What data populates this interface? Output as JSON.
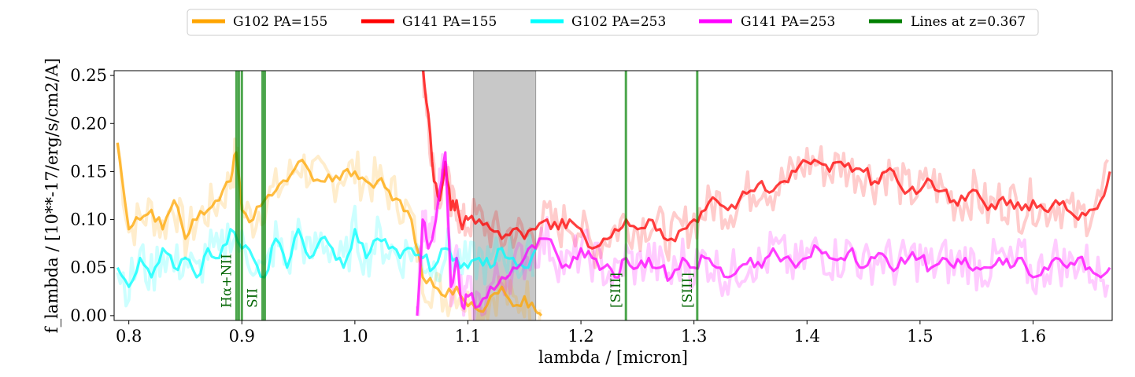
{
  "chart_data": {
    "type": "line",
    "title": "",
    "xlabel": "lambda / [micron]",
    "ylabel": "f_lambda / [10**-17/erg/s/cm2/A]",
    "xlim": [
      0.787,
      1.67
    ],
    "ylim": [
      -0.005,
      0.255
    ],
    "x_ticks": [
      "0.8",
      "0.9",
      "1.0",
      "1.1",
      "1.2",
      "1.3",
      "1.4",
      "1.5",
      "1.6"
    ],
    "y_ticks": [
      "0.00",
      "0.05",
      "0.10",
      "0.15",
      "0.20",
      "0.25"
    ],
    "grid": false,
    "legend_position": "top-center",
    "legend": [
      {
        "label": "G102 PA=155",
        "color": "#ffa500"
      },
      {
        "label": "G141 PA=155",
        "color": "#ff0000"
      },
      {
        "label": "G102 PA=253",
        "color": "#00ffff"
      },
      {
        "label": "G141 PA=253",
        "color": "#ff00ff"
      },
      {
        "label": "Lines at z=0.367",
        "color": "#008000"
      }
    ],
    "shaded_region": {
      "x": [
        1.105,
        1.16
      ],
      "color": "#c8c8c8"
    },
    "series": [
      {
        "name": "G102 PA=155",
        "color": "#ffa500",
        "x": [
          0.79,
          0.8,
          0.81,
          0.82,
          0.83,
          0.84,
          0.85,
          0.86,
          0.87,
          0.88,
          0.89,
          0.895,
          0.9,
          0.91,
          0.92,
          0.93,
          0.94,
          0.95,
          0.96,
          0.97,
          0.98,
          0.99,
          1.0,
          1.01,
          1.02,
          1.03,
          1.04,
          1.05,
          1.06,
          1.07,
          1.08,
          1.09,
          1.1,
          1.11,
          1.12,
          1.13,
          1.14,
          1.15,
          1.16,
          1.165
        ],
        "y": [
          0.18,
          0.09,
          0.1,
          0.11,
          0.09,
          0.12,
          0.08,
          0.1,
          0.11,
          0.12,
          0.14,
          0.17,
          0.11,
          0.1,
          0.12,
          0.13,
          0.14,
          0.16,
          0.15,
          0.14,
          0.14,
          0.15,
          0.15,
          0.14,
          0.14,
          0.13,
          0.12,
          0.1,
          0.04,
          0.03,
          0.02,
          0.03,
          0.01,
          0.005,
          0.02,
          0.03,
          0.01,
          0.02,
          0.005,
          0.0
        ]
      },
      {
        "name": "G141 PA=155",
        "color": "#ff0000",
        "x": [
          1.06,
          1.065,
          1.07,
          1.075,
          1.08,
          1.085,
          1.09,
          1.095,
          1.1,
          1.11,
          1.12,
          1.13,
          1.14,
          1.15,
          1.16,
          1.17,
          1.18,
          1.19,
          1.2,
          1.21,
          1.22,
          1.23,
          1.24,
          1.25,
          1.26,
          1.27,
          1.28,
          1.29,
          1.3,
          1.31,
          1.32,
          1.33,
          1.34,
          1.35,
          1.36,
          1.37,
          1.38,
          1.39,
          1.4,
          1.41,
          1.42,
          1.43,
          1.44,
          1.45,
          1.46,
          1.47,
          1.48,
          1.49,
          1.5,
          1.51,
          1.52,
          1.53,
          1.54,
          1.55,
          1.56,
          1.57,
          1.58,
          1.59,
          1.6,
          1.61,
          1.62,
          1.63,
          1.64,
          1.65,
          1.66,
          1.668
        ],
        "y": [
          0.26,
          0.21,
          0.14,
          0.12,
          0.16,
          0.11,
          0.12,
          0.09,
          0.1,
          0.1,
          0.09,
          0.08,
          0.09,
          0.08,
          0.09,
          0.1,
          0.09,
          0.1,
          0.09,
          0.07,
          0.08,
          0.09,
          0.1,
          0.09,
          0.1,
          0.09,
          0.08,
          0.09,
          0.1,
          0.11,
          0.12,
          0.11,
          0.12,
          0.13,
          0.14,
          0.13,
          0.14,
          0.15,
          0.16,
          0.16,
          0.15,
          0.16,
          0.15,
          0.15,
          0.14,
          0.15,
          0.14,
          0.13,
          0.13,
          0.14,
          0.13,
          0.12,
          0.12,
          0.13,
          0.11,
          0.12,
          0.12,
          0.11,
          0.12,
          0.11,
          0.12,
          0.11,
          0.1,
          0.11,
          0.12,
          0.15
        ]
      },
      {
        "name": "G102 PA=253",
        "color": "#00ffff",
        "x": [
          0.79,
          0.8,
          0.81,
          0.82,
          0.83,
          0.84,
          0.85,
          0.86,
          0.87,
          0.88,
          0.89,
          0.9,
          0.91,
          0.92,
          0.93,
          0.94,
          0.95,
          0.96,
          0.97,
          0.98,
          0.99,
          1.0,
          1.01,
          1.02,
          1.03,
          1.04,
          1.05,
          1.06,
          1.07,
          1.08,
          1.09,
          1.1,
          1.11,
          1.12,
          1.13,
          1.14,
          1.15,
          1.16
        ],
        "y": [
          0.05,
          0.03,
          0.06,
          0.04,
          0.07,
          0.05,
          0.06,
          0.04,
          0.07,
          0.06,
          0.09,
          0.07,
          0.06,
          0.04,
          0.08,
          0.05,
          0.09,
          0.06,
          0.08,
          0.07,
          0.05,
          0.09,
          0.06,
          0.08,
          0.07,
          0.06,
          0.07,
          0.06,
          0.05,
          0.07,
          0.06,
          0.05,
          0.06,
          0.05,
          0.07,
          0.06,
          0.05,
          0.07
        ]
      },
      {
        "name": "G141 PA=253",
        "color": "#ff00ff",
        "x": [
          1.055,
          1.06,
          1.065,
          1.07,
          1.075,
          1.08,
          1.085,
          1.09,
          1.095,
          1.1,
          1.11,
          1.12,
          1.13,
          1.14,
          1.15,
          1.16,
          1.17,
          1.18,
          1.19,
          1.2,
          1.21,
          1.22,
          1.23,
          1.24,
          1.25,
          1.26,
          1.27,
          1.28,
          1.29,
          1.3,
          1.31,
          1.32,
          1.33,
          1.34,
          1.35,
          1.36,
          1.37,
          1.38,
          1.39,
          1.4,
          1.41,
          1.42,
          1.43,
          1.44,
          1.45,
          1.46,
          1.47,
          1.48,
          1.49,
          1.5,
          1.51,
          1.52,
          1.53,
          1.54,
          1.55,
          1.56,
          1.57,
          1.58,
          1.59,
          1.6,
          1.61,
          1.62,
          1.63,
          1.64,
          1.65,
          1.66,
          1.668
        ],
        "y": [
          0.0,
          0.1,
          0.07,
          0.09,
          0.13,
          0.17,
          0.03,
          0.06,
          0.01,
          0.02,
          0.01,
          0.03,
          0.04,
          0.05,
          0.06,
          0.07,
          0.08,
          0.06,
          0.05,
          0.07,
          0.06,
          0.05,
          0.04,
          0.06,
          0.05,
          0.06,
          0.05,
          0.04,
          0.06,
          0.05,
          0.06,
          0.05,
          0.04,
          0.05,
          0.06,
          0.05,
          0.07,
          0.06,
          0.05,
          0.06,
          0.07,
          0.06,
          0.06,
          0.07,
          0.05,
          0.06,
          0.06,
          0.05,
          0.06,
          0.06,
          0.05,
          0.06,
          0.05,
          0.06,
          0.05,
          0.05,
          0.06,
          0.05,
          0.06,
          0.04,
          0.05,
          0.06,
          0.05,
          0.06,
          0.05,
          0.04,
          0.05
        ]
      }
    ],
    "lines": [
      {
        "label": "Hα+NII",
        "x": [
          0.8952,
          0.8973,
          0.9
        ]
      },
      {
        "label": "SII",
        "x": [
          0.9183,
          0.9203
        ]
      },
      {
        "label": "[SIII]",
        "x": [
          1.2398
        ]
      },
      {
        "label": "[SIII]",
        "x": [
          1.3029
        ]
      }
    ]
  }
}
